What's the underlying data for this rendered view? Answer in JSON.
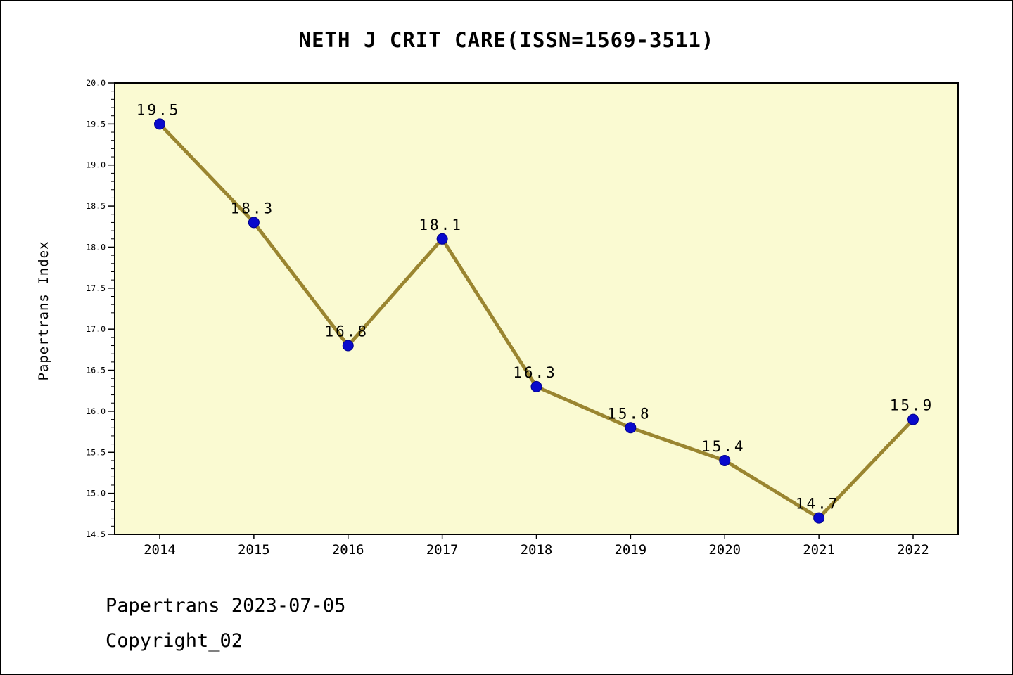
{
  "chart_data": {
    "type": "line",
    "title": "NETH J CRIT CARE(ISSN=1569-3511)",
    "xlabel": "",
    "ylabel": "Papertrans Index",
    "categories": [
      "2014",
      "2015",
      "2016",
      "2017",
      "2018",
      "2019",
      "2020",
      "2021",
      "2022"
    ],
    "series": [
      {
        "name": "Papertrans Index",
        "values": [
          19.5,
          18.3,
          16.8,
          18.1,
          16.3,
          15.8,
          15.4,
          14.7,
          15.9
        ]
      }
    ],
    "ylim": [
      14.5,
      20.0
    ],
    "ytick_step": 0.5,
    "minor_tick_step": 0.1,
    "grid": false,
    "legend": "none",
    "colors": {
      "line": "#9a8530",
      "marker_fill": "#0909cc",
      "marker_edge": "#00008b",
      "plot_background": "#fafad2",
      "frame": "#000000",
      "text": "#000000"
    }
  },
  "footer": {
    "line1": "Papertrans 2023-07-05",
    "line2": "Copyright_02"
  }
}
